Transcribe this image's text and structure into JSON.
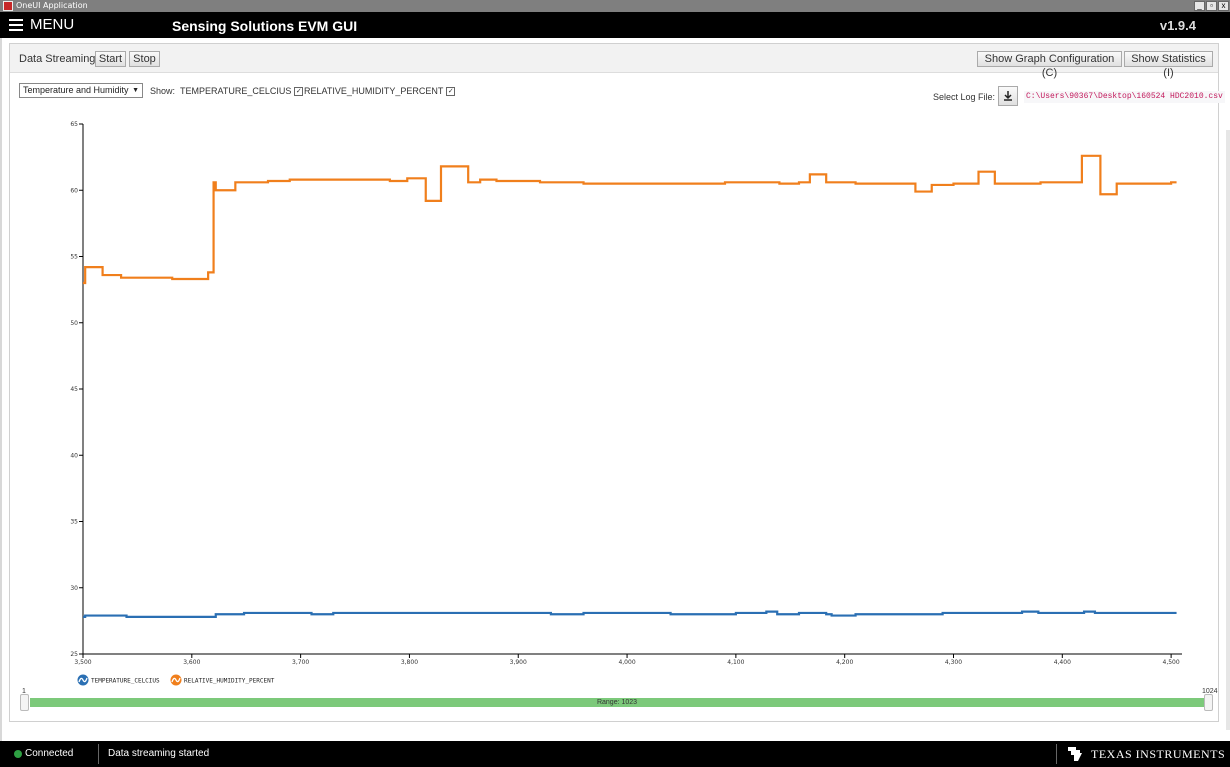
{
  "window": {
    "title": "OneUI Application",
    "controls": [
      "_",
      "▫",
      "x"
    ]
  },
  "appbar": {
    "menu_label": "MENU",
    "title": "Sensing Solutions EVM GUI",
    "version": "v1.9.4"
  },
  "streaming": {
    "label": "Data Streaming:",
    "start_label": "Start",
    "stop_label": "Stop"
  },
  "graph_buttons": {
    "config_label": "Show Graph Configuration (C)",
    "stats_label": "Show Statistics (I)"
  },
  "controls": {
    "select_value": "Temperature and Humidity",
    "show_label": "Show:",
    "series_toggles": [
      {
        "label": "TEMPERATURE_CELCIUS",
        "checked": true
      },
      {
        "label": "RELATIVE_HUMIDITY_PERCENT",
        "checked": true
      }
    ],
    "log_label": "Select Log File:",
    "log_path": "C:\\Users\\90367\\Desktop\\160524 HDC2010.csv"
  },
  "range": {
    "min_label": "1",
    "max_label": "1024",
    "text": "Range: 1023"
  },
  "status": {
    "connection": "Connected",
    "message": "Data streaming started",
    "brand": "TEXAS INSTRUMENTS"
  },
  "colors": {
    "temperature": "#2a6fb3",
    "humidity": "#f07f1c",
    "range_fill": "#7cc97a",
    "connected": "#2ea043"
  },
  "icons": {
    "menu": "hamburger-icon",
    "download": "download-icon",
    "ti": "ti-logo-icon",
    "status": "status-dot-icon"
  },
  "chart_data": {
    "type": "line",
    "x_range": [
      3500,
      4510
    ],
    "ylim": [
      25,
      65
    ],
    "y_ticks": [
      "25",
      "30",
      "35",
      "40",
      "45",
      "50",
      "55",
      "60",
      "65"
    ],
    "x_ticks": [
      "3,500",
      "3,600",
      "3,700",
      "3,800",
      "3,900",
      "4,000",
      "4,100",
      "4,200",
      "4,300",
      "4,400",
      "4,500"
    ],
    "x_tick_values": [
      3500,
      3600,
      3700,
      3800,
      3900,
      4000,
      4100,
      4200,
      4300,
      4400,
      4500
    ],
    "legend_position": "bottom-left",
    "grid": false,
    "step": true,
    "series": [
      {
        "name": "TEMPERATURE_CELCIUS",
        "color": "#2a6fb3",
        "x": [
          3490,
          3502,
          3540,
          3590,
          3620,
          3622,
          3630,
          3648,
          3690,
          3710,
          3730,
          3760,
          3780,
          3805,
          3810,
          3828,
          3860,
          3900,
          3930,
          3960,
          3990,
          4040,
          4100,
          4128,
          4138,
          4158,
          4175,
          4183,
          4188,
          4200,
          4210,
          4220,
          4240,
          4260,
          4290,
          4320,
          4350,
          4363,
          4378,
          4395,
          4410,
          4420,
          4430,
          4445,
          4500
        ],
        "y": [
          27.8,
          27.9,
          27.8,
          27.8,
          27.8,
          28.0,
          28.0,
          28.1,
          28.1,
          28.0,
          28.1,
          28.1,
          28.1,
          28.1,
          28.1,
          28.1,
          28.1,
          28.1,
          28.0,
          28.1,
          28.1,
          28.0,
          28.1,
          28.2,
          28.0,
          28.1,
          28.1,
          28.0,
          27.9,
          27.9,
          28.0,
          28.0,
          28.0,
          28.0,
          28.1,
          28.1,
          28.1,
          28.2,
          28.1,
          28.1,
          28.1,
          28.2,
          28.1,
          28.1,
          28.1
        ]
      },
      {
        "name": "RELATIVE_HUMIDITY_PERCENT",
        "color": "#f07f1c",
        "x": [
          3490,
          3502,
          3518,
          3535,
          3547,
          3560,
          3570,
          3582,
          3615,
          3620,
          3622,
          3640,
          3653,
          3670,
          3690,
          3730,
          3756,
          3782,
          3798,
          3800,
          3815,
          3829,
          3832,
          3854,
          3865,
          3880,
          3900,
          3920,
          3940,
          3960,
          3990,
          4040,
          4090,
          4100,
          4140,
          4158,
          4168,
          4183,
          4210,
          4250,
          4265,
          4280,
          4300,
          4317,
          4323,
          4338,
          4380,
          4400,
          4418,
          4435,
          4450,
          4500
        ],
        "y": [
          53.0,
          54.2,
          53.6,
          53.4,
          53.4,
          53.4,
          53.4,
          53.3,
          53.8,
          60.6,
          60.0,
          60.6,
          60.6,
          60.7,
          60.8,
          60.8,
          60.8,
          60.7,
          60.9,
          60.9,
          59.2,
          61.8,
          61.8,
          60.6,
          60.8,
          60.7,
          60.7,
          60.6,
          60.6,
          60.5,
          60.5,
          60.5,
          60.6,
          60.6,
          60.5,
          60.6,
          61.2,
          60.6,
          60.5,
          60.5,
          59.9,
          60.4,
          60.5,
          60.5,
          61.4,
          60.5,
          60.6,
          60.6,
          62.6,
          59.7,
          60.5,
          60.6
        ]
      }
    ]
  }
}
